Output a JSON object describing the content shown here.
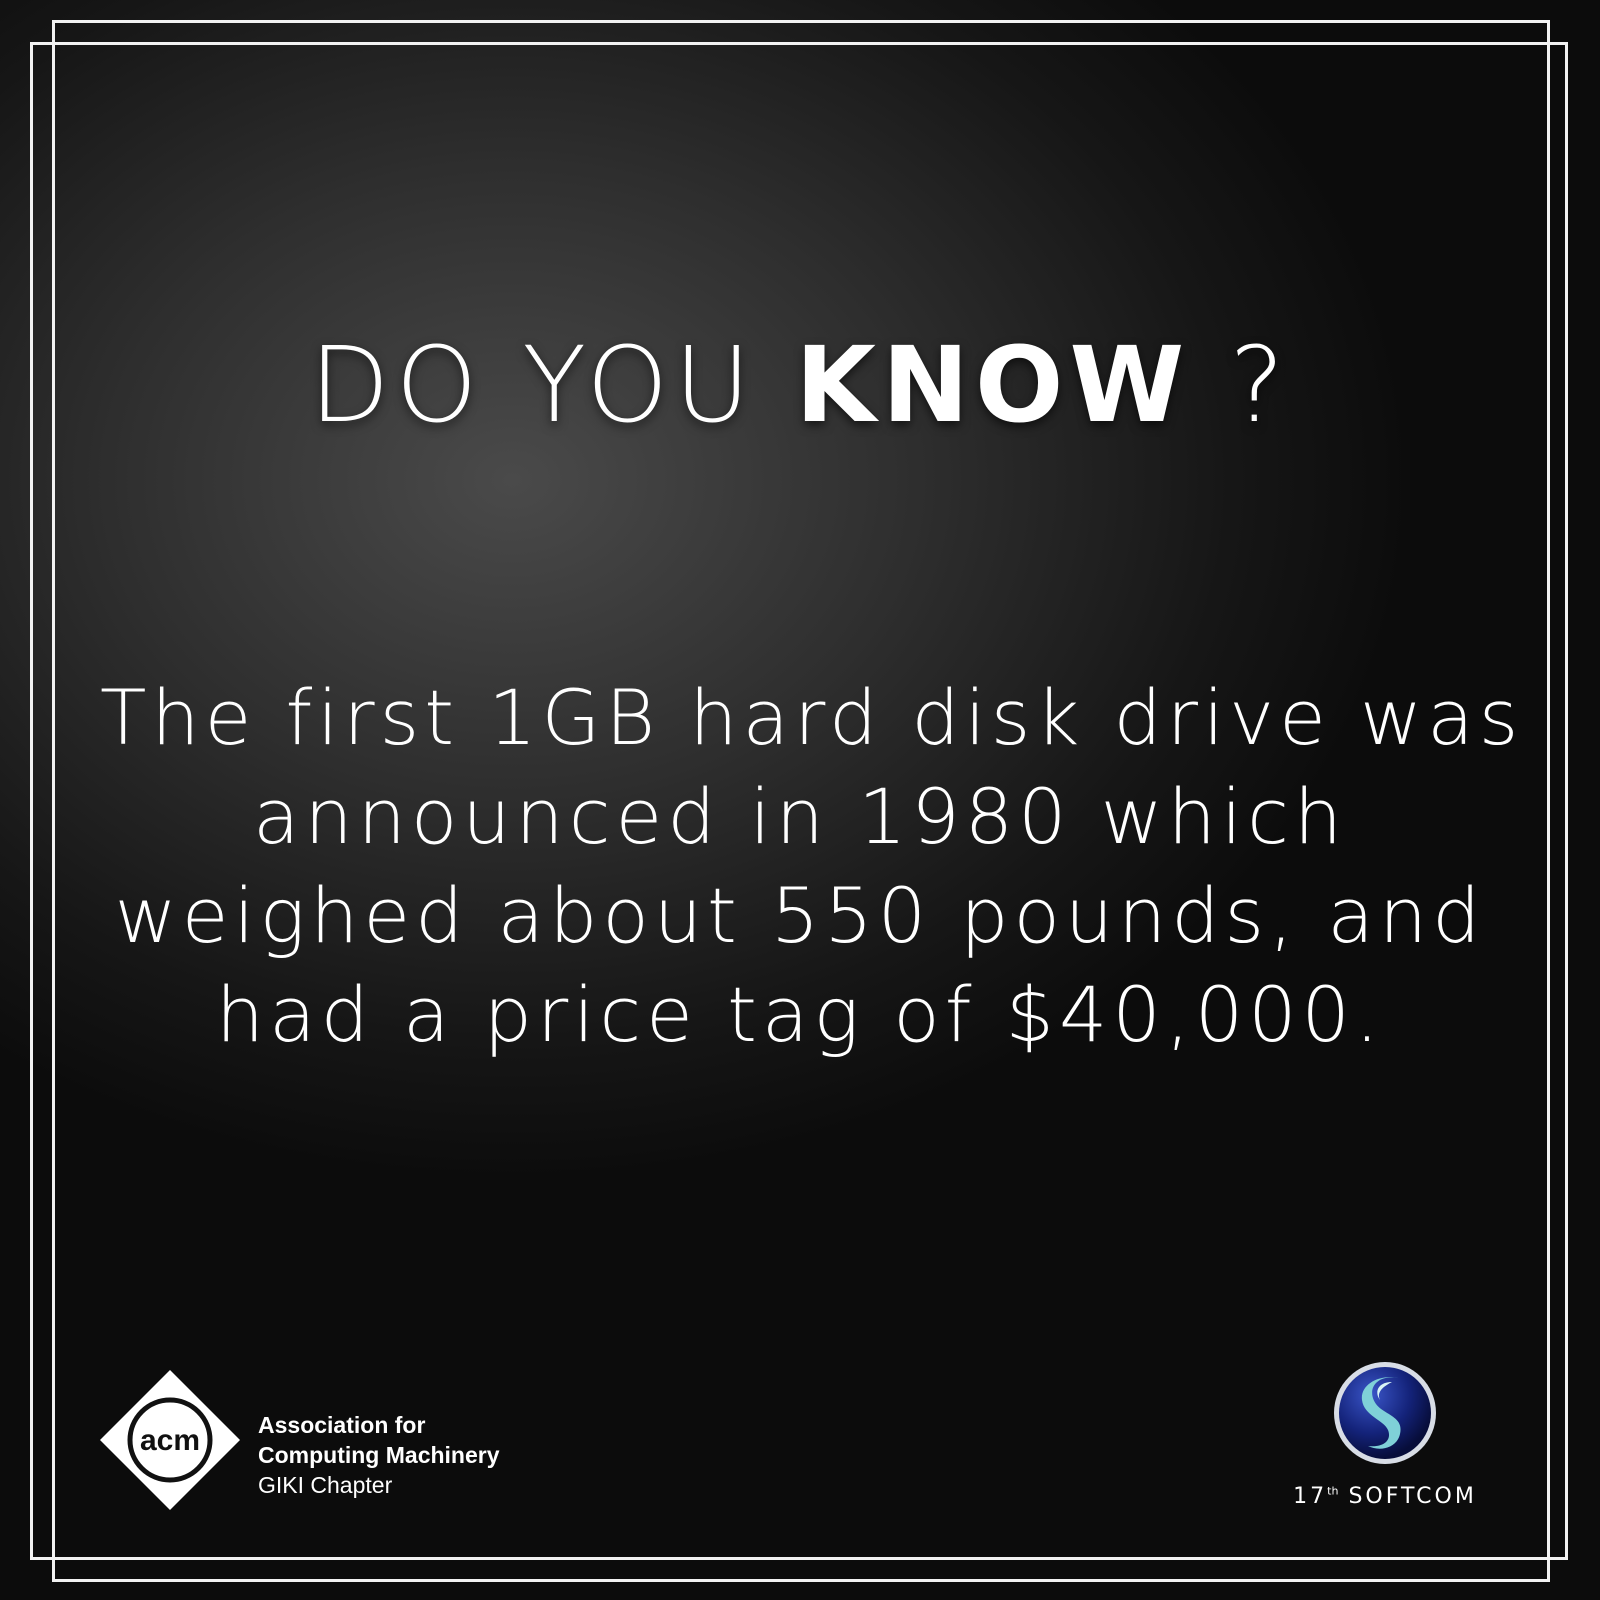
{
  "headline": {
    "light": "DO YOU",
    "bold": "KNOW",
    "punct": "?"
  },
  "fact": {
    "lines": [
      "The first 1GB hard disk drive was",
      "announced in 1980 which",
      "weighed about 550 pounds, and",
      "had a price tag of $40,000."
    ]
  },
  "acm": {
    "logo_text": "acm",
    "line1": "Association for",
    "line2": "Computing Machinery",
    "line3": "GIKI Chapter"
  },
  "softcom": {
    "number": "17",
    "suffix": "th",
    "name": "SOFTCOM"
  },
  "colors": {
    "text": "#ffffff",
    "frame": "#f2f2f2",
    "softcom_blue": "#1a2f8a",
    "softcom_teal": "#7fd0d8"
  }
}
